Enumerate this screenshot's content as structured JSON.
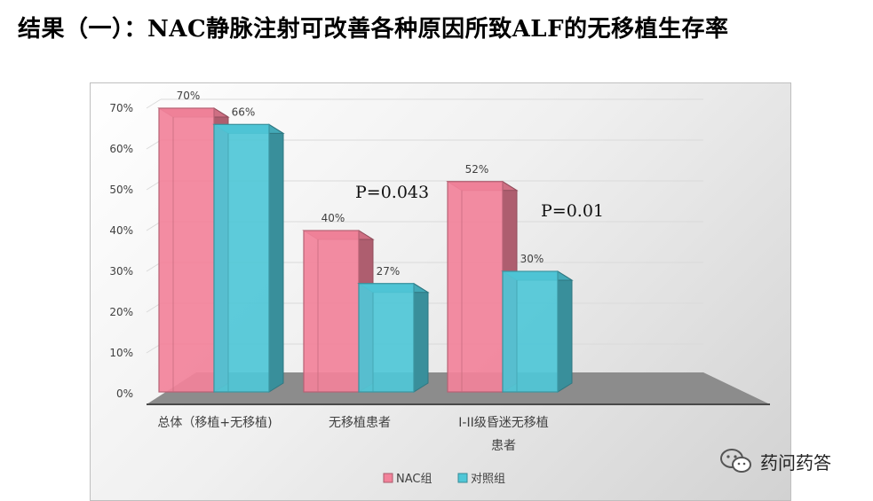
{
  "page_title": "结果（一）：NAC静脉注射可改善各种原因所致ALF的无移植生存率",
  "watermark_text": "药问药答",
  "chart_data": {
    "type": "bar",
    "subtype": "3d-clustered",
    "categories": [
      "总体（移植+无移植)",
      "无移植患者",
      "I-II级昏迷无移植患者"
    ],
    "series": [
      {
        "name": "NAC组",
        "values": [
          70,
          40,
          52
        ],
        "labels": [
          "70%",
          "40%",
          "52%"
        ],
        "color": "#f2829a"
      },
      {
        "name": "对照组",
        "values": [
          66,
          27,
          30
        ],
        "labels": [
          "66%",
          "27%",
          "30%"
        ],
        "color": "#4fc7d7"
      }
    ],
    "y_ticks": [
      "0%",
      "10%",
      "20%",
      "30%",
      "40%",
      "50%",
      "60%",
      "70%"
    ],
    "ylim": [
      0,
      70
    ],
    "grid": true,
    "legend": "bottom",
    "annotations": [
      {
        "text": "P=0.043",
        "category": 1
      },
      {
        "text": "P=0.01",
        "category": 2
      }
    ]
  }
}
